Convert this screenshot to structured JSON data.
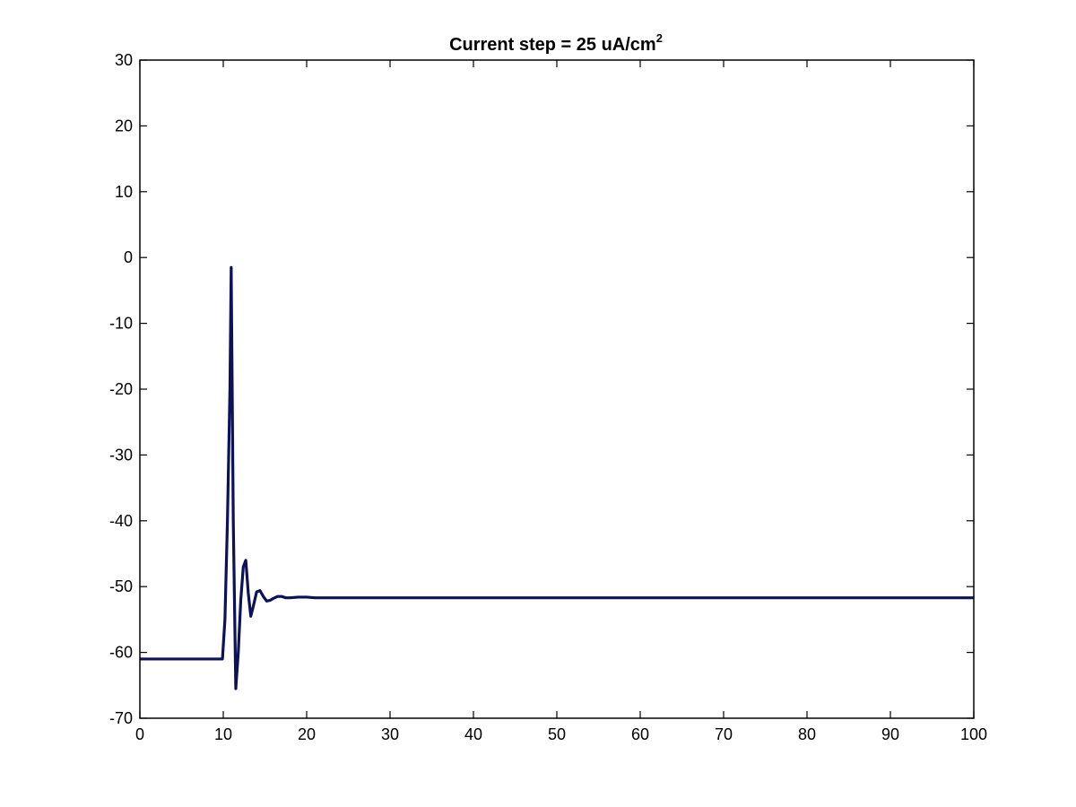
{
  "chart_data": {
    "type": "line",
    "title": "Current step = 25 uA/cm",
    "title_superscript": "2",
    "xlabel": "",
    "ylabel": "",
    "xlim": [
      0,
      100
    ],
    "ylim": [
      -70,
      30
    ],
    "xticks": [
      0,
      10,
      20,
      30,
      40,
      50,
      60,
      70,
      80,
      90,
      100
    ],
    "yticks": [
      -70,
      -60,
      -50,
      -40,
      -30,
      -20,
      -10,
      0,
      10,
      20,
      30
    ],
    "grid": false,
    "series": [
      {
        "color": "#0c1257",
        "x": [
          0,
          9.9,
          10.2,
          10.5,
          10.8,
          10.95,
          11.2,
          11.5,
          11.8,
          12.1,
          12.4,
          12.7,
          13.0,
          13.3,
          13.6,
          14.0,
          14.4,
          14.8,
          15.2,
          15.6,
          16.0,
          16.5,
          17.0,
          17.5,
          18.0,
          19.0,
          20.0,
          21.0,
          100
        ],
        "y": [
          -61,
          -61,
          -55,
          -40,
          -20,
          -1.5,
          -40,
          -65.5,
          -60,
          -52,
          -47,
          -46,
          -51,
          -54.5,
          -53,
          -50.8,
          -50.6,
          -51.5,
          -52.2,
          -52.1,
          -51.8,
          -51.5,
          -51.5,
          -51.7,
          -51.7,
          -51.6,
          -51.6,
          -51.7,
          -51.7
        ]
      }
    ]
  }
}
